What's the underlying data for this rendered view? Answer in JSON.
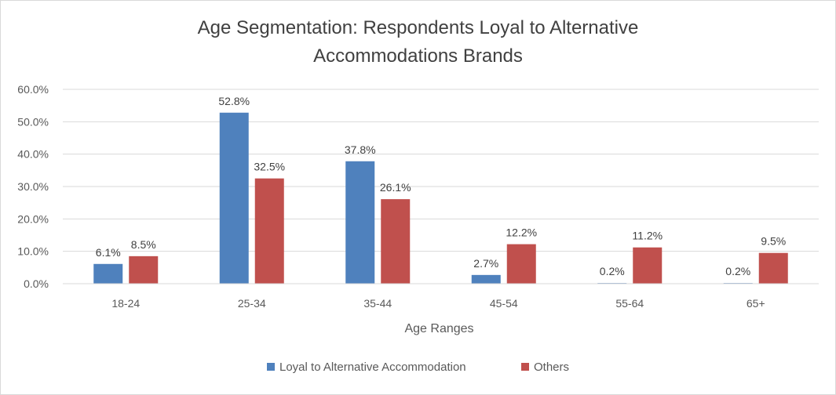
{
  "chart_data": {
    "type": "bar",
    "title_line1": "Age Segmentation:  Respondents Loyal to Alternative",
    "title_line2": "Accommodations Brands",
    "xlabel": "Age Ranges",
    "ylabel": "",
    "categories": [
      "18-24",
      "25-34",
      "35-44",
      "45-54",
      "55-64",
      "65+"
    ],
    "series": [
      {
        "name": "Loyal to Alternative Accommodation",
        "color": "#4f81bd",
        "values": [
          6.1,
          52.8,
          37.8,
          2.7,
          0.2,
          0.2
        ],
        "labels": [
          "6.1%",
          "52.8%",
          "37.8%",
          "2.7%",
          "0.2%",
          "0.2%"
        ]
      },
      {
        "name": "Others",
        "color": "#c0504d",
        "values": [
          8.5,
          32.5,
          26.1,
          12.2,
          11.2,
          9.5
        ],
        "labels": [
          "8.5%",
          "32.5%",
          "26.1%",
          "12.2%",
          "11.2%",
          "9.5%"
        ]
      }
    ],
    "ylim": [
      0,
      60
    ],
    "yticks": [
      0,
      10,
      20,
      30,
      40,
      50,
      60
    ],
    "ytick_labels": [
      "0.0%",
      "10.0%",
      "20.0%",
      "30.0%",
      "40.0%",
      "50.0%",
      "60.0%"
    ],
    "grid": true,
    "legend_position": "bottom"
  }
}
